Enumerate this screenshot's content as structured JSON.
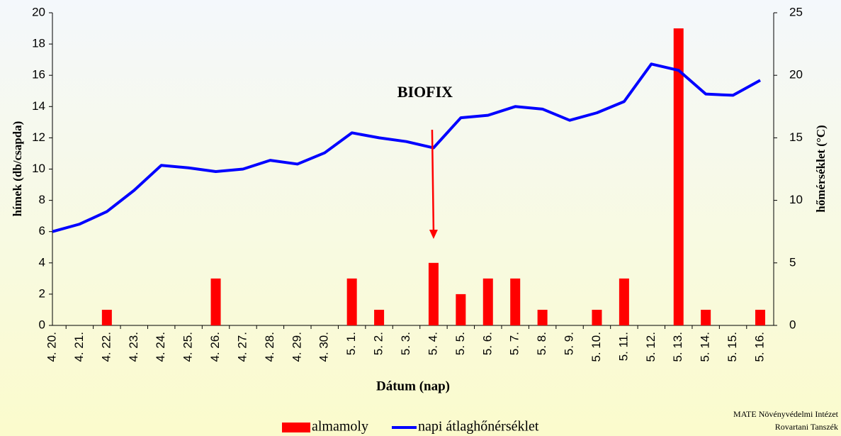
{
  "chart_data": {
    "type": "bar-line",
    "categories": [
      "4. 20.",
      "4. 21.",
      "4. 22.",
      "4. 23.",
      "4. 24.",
      "4. 25.",
      "4. 26.",
      "4. 27.",
      "4. 28.",
      "4. 29.",
      "4. 30.",
      "5. 1.",
      "5. 2.",
      "5. 3.",
      "5. 4.",
      "5. 5.",
      "5. 6.",
      "5. 7.",
      "5. 8.",
      "5. 9.",
      "5. 10.",
      "5. 11.",
      "5. 12.",
      "5. 13.",
      "5. 14.",
      "5. 15.",
      "5. 16."
    ],
    "series": [
      {
        "name": "almamoly",
        "type": "bar",
        "color": "#ff0000",
        "values": [
          0,
          0,
          1,
          0,
          0,
          0,
          3,
          0,
          0,
          0,
          0,
          3,
          1,
          0,
          4,
          2,
          3,
          3,
          1,
          0,
          1,
          3,
          0,
          19,
          1,
          0,
          1
        ]
      },
      {
        "name": "napi átlaghőnérséklet",
        "type": "line",
        "axis": "y2",
        "color": "#0000ff",
        "values": [
          7.5,
          8.1,
          9.1,
          10.8,
          12.8,
          12.6,
          12.3,
          12.5,
          13.2,
          12.9,
          13.8,
          15.4,
          15.0,
          14.7,
          14.2,
          16.6,
          16.8,
          17.5,
          17.3,
          16.4,
          17.0,
          17.9,
          20.9,
          20.4,
          18.5,
          18.4,
          19.6
        ]
      }
    ],
    "ylim": [
      0,
      20
    ],
    "yticks": [
      0,
      2,
      4,
      6,
      8,
      10,
      12,
      14,
      16,
      18,
      20
    ],
    "y2lim": [
      0,
      25
    ],
    "y2ticks": [
      0,
      5,
      10,
      15,
      20,
      25
    ],
    "y_label": "hímek (db/csapda)",
    "y2_label": "hőmérséklet (°C)",
    "x_label": "Dátum (nap)",
    "annotation": {
      "text": "BIOFIX",
      "color": "#ff0000",
      "category": 14
    },
    "source": [
      "MATE Növényvédelmi Intézet",
      "Rovartani Tanszék"
    ]
  }
}
